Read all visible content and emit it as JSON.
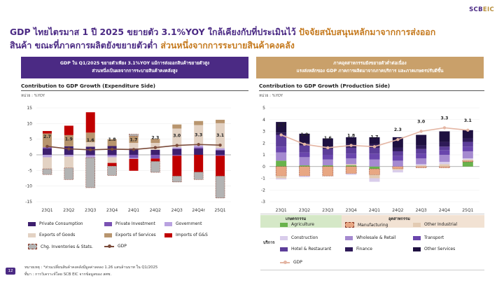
{
  "brand": {
    "name": "SCB",
    "suffix": "EIC"
  },
  "headline": {
    "line1_purple": "GDP ไทยไตรมาส 1 ปี 2025 ขยายตัว 3.1%YOY ใกล้เคียงกับที่ประเมินไว้",
    "line1_orange": "ปัจจัยสนับสนุนหลักมาจากการส่งออก",
    "line2_purple": "สินค้า ขณะที่ภาคการผลิตยังขยายตัวต่ำ",
    "line2_orange": "ส่วนหนึ่งจากการระบายสินค้าคงคลัง"
  },
  "banner_left": {
    "line1": "GDP ใน Q1/2025 ขยายตัวเพียง 3.1%YOY แม้การส่งออกสินค้าขยายตัวสูง",
    "line2": "ส่วนหนึ่งเป็นผลจากการระบายสินค้าคงคลังสูง"
  },
  "banner_right": {
    "line1": "ภาคอุตสาหกรรมยังขยายตัวต่ำต่อเนื่อง",
    "line2": "แรงส่งหลักของ GDP ภาคการผลิตมาจากภาคบริการ และภาคเกษตรปรับดีขึ้น"
  },
  "footnote": {
    "line1": "หมายเหตุ : *ส่วนเปลี่ยนสินค้าคงคลังมีมูลค่าลดลง 1.26 แสนล้านบาท ใน Q1/2025",
    "line2": "ที่มา : การวิเคราะห์โดย SCB EIC จากข้อมูลของ สศช."
  },
  "page_number": "12",
  "colors": {
    "private_consumption": "#3d1f6e",
    "private_investment": "#7a52b3",
    "government": "#b9a2e0",
    "exports_goods": "#e3d2c3",
    "exports_services": "#b8956e",
    "imports": "#c00000",
    "inventories": "#b3b3b3",
    "gdp_left": "#7b4b3a",
    "agriculture": "#69b34c",
    "manufacturing": "#e8a783",
    "other_industrial": "#e3cbb3",
    "construction": "#d9cdeb",
    "wholesale": "#a58ad0",
    "transport": "#6a46ad",
    "hotel": "#5c3d99",
    "finance": "#2e1a58",
    "other_services": "#1e1040",
    "gdp_right": "#e4b6a4"
  },
  "chart_data": [
    {
      "type": "bar",
      "title": "Contribution to GDP Growth (Expenditure Side)",
      "unit": "หน่วย : %YOY",
      "ylim": [
        -15,
        15
      ],
      "yticks": [
        "15",
        "10",
        "5",
        "0",
        "-5",
        "-10",
        "-15"
      ],
      "categories": [
        "23Q1",
        "23Q2",
        "23Q3",
        "23Q4",
        "24Q1",
        "24Q2",
        "24Q3",
        "24Q4r",
        "25Q1"
      ],
      "series": [
        {
          "name": "Private Consumption",
          "values": [
            2.0,
            2.7,
            2.6,
            2.8,
            2.0,
            1.6,
            1.9,
            2.0,
            1.5
          ]
        },
        {
          "name": "Private Investment",
          "values": [
            0.4,
            0.0,
            -0.3,
            -0.3,
            -1.0,
            -1.2,
            -0.3,
            0.4,
            -0.3
          ]
        },
        {
          "name": "Government",
          "values": [
            -0.8,
            -0.6,
            -0.6,
            -0.5,
            -0.3,
            0.0,
            0.5,
            0.6,
            0.6
          ]
        },
        {
          "name": "Exports of Goods",
          "values": [
            -3.7,
            -3.6,
            1.4,
            -1.8,
            1.8,
            2.2,
            6.0,
            6.5,
            8.0
          ]
        },
        {
          "name": "Exports of Services",
          "values": [
            4.4,
            3.6,
            3.1,
            2.2,
            2.2,
            1.3,
            1.3,
            1.3,
            1.1
          ]
        },
        {
          "name": "Imports of G&S",
          "values": [
            0.8,
            3.0,
            6.5,
            -1.0,
            -3.8,
            -0.9,
            -6.5,
            -5.5,
            -6.5
          ]
        },
        {
          "name": "Chg. Inventories & Stats.",
          "values": [
            -1.8,
            -3.7,
            -9.6,
            -3.0,
            0.6,
            -3.5,
            -1.9,
            -2.4,
            -7.0
          ]
        }
      ],
      "gdp": {
        "name": "GDP",
        "values": [
          2.7,
          1.9,
          1.6,
          1.8,
          1.7,
          2.3,
          3.0,
          3.3,
          3.1
        ],
        "labels": [
          "2.7",
          "1.9",
          "1.6",
          "1.8",
          "1.7",
          "2.3",
          "3.0",
          "3.3",
          "3.1"
        ]
      }
    },
    {
      "type": "bar",
      "title": "Contribution to GDP Growth (Production Side)",
      "unit": "หน่วย : %YOY",
      "ylim": [
        -3,
        5
      ],
      "yticks": [
        "5",
        "4",
        "3",
        "2",
        "1",
        "0",
        "-1",
        "-2",
        "-3"
      ],
      "categories": [
        "23Q1",
        "23Q2",
        "23Q3",
        "23Q4",
        "24Q1",
        "24Q2",
        "24Q3",
        "24Q4",
        "25Q1"
      ],
      "series": [
        {
          "name": "Agriculture",
          "values": [
            0.5,
            0.1,
            0.1,
            0.1,
            -0.2,
            0.0,
            0.0,
            0.0,
            0.4
          ]
        },
        {
          "name": "Manufacturing",
          "values": [
            -0.8,
            -0.8,
            -0.8,
            -0.6,
            -0.5,
            -0.2,
            -0.1,
            -0.1,
            0.1
          ]
        },
        {
          "name": "Other Industrial",
          "values": [
            -0.2,
            0.0,
            0.0,
            0.1,
            -0.3,
            -0.1,
            0.1,
            0.2,
            0.1
          ]
        },
        {
          "name": "Construction",
          "values": [
            -0.1,
            -0.1,
            0.0,
            -0.1,
            -0.3,
            -0.2,
            0.1,
            0.2,
            0.1
          ]
        },
        {
          "name": "Wholesale & Retail",
          "values": [
            0.7,
            0.7,
            0.5,
            0.5,
            0.6,
            0.5,
            0.5,
            0.6,
            0.6
          ]
        },
        {
          "name": "Transport",
          "values": [
            0.5,
            0.4,
            0.4,
            0.4,
            0.5,
            0.4,
            0.4,
            0.4,
            0.4
          ]
        },
        {
          "name": "Hotel & Restaurant",
          "values": [
            1.0,
            0.6,
            0.5,
            0.5,
            0.5,
            0.4,
            0.4,
            0.3,
            0.4
          ]
        },
        {
          "name": "Finance",
          "values": [
            0.2,
            0.2,
            0.2,
            0.3,
            0.3,
            0.3,
            0.3,
            0.4,
            0.3
          ]
        },
        {
          "name": "Other Services",
          "values": [
            0.9,
            0.8,
            0.7,
            0.6,
            0.6,
            0.9,
            0.9,
            0.9,
            0.7
          ]
        }
      ],
      "gdp": {
        "name": "GDP",
        "values": [
          2.7,
          1.9,
          1.6,
          1.8,
          1.7,
          2.3,
          3.0,
          3.3,
          3.1
        ],
        "labels": [
          "2.7",
          "1.9",
          "1.6",
          "1.8",
          "1.7",
          "2.3",
          "3.0",
          "3.3",
          "3.1"
        ]
      }
    }
  ],
  "legend_left": [
    {
      "label": "Private Consumption",
      "color_key": "private_consumption"
    },
    {
      "label": "Private Investment",
      "color_key": "private_investment"
    },
    {
      "label": "Government",
      "color_key": "government"
    },
    {
      "label": "Exports of Goods",
      "color_key": "exports_goods"
    },
    {
      "label": "Exports of Services",
      "color_key": "exports_services"
    },
    {
      "label": "Imports of G&S",
      "color_key": "imports"
    },
    {
      "label": "Chg. Inventories & Stats.",
      "color_key": "inventories"
    },
    {
      "label": "GDP",
      "color_key": "gdp_left"
    }
  ],
  "legend_right": {
    "agri_header": "เกษตรกรรม",
    "industry_header": "อุตสาหกรรม",
    "services_header": "บริการ",
    "items": [
      {
        "label": "Agriculture",
        "color_key": "agriculture"
      },
      {
        "label": "Manufacturing",
        "color_key": "manufacturing"
      },
      {
        "label": "Other Industrial",
        "color_key": "other_industrial"
      },
      {
        "label": "Construction",
        "color_key": "construction"
      },
      {
        "label": "Wholesale & Retail",
        "color_key": "wholesale"
      },
      {
        "label": "Transport",
        "color_key": "transport"
      },
      {
        "label": "Hotel & Restaurant",
        "color_key": "hotel"
      },
      {
        "label": "Finance",
        "color_key": "finance"
      },
      {
        "label": "Other Services",
        "color_key": "other_services"
      },
      {
        "label": "GDP",
        "color_key": "gdp_right"
      }
    ]
  }
}
